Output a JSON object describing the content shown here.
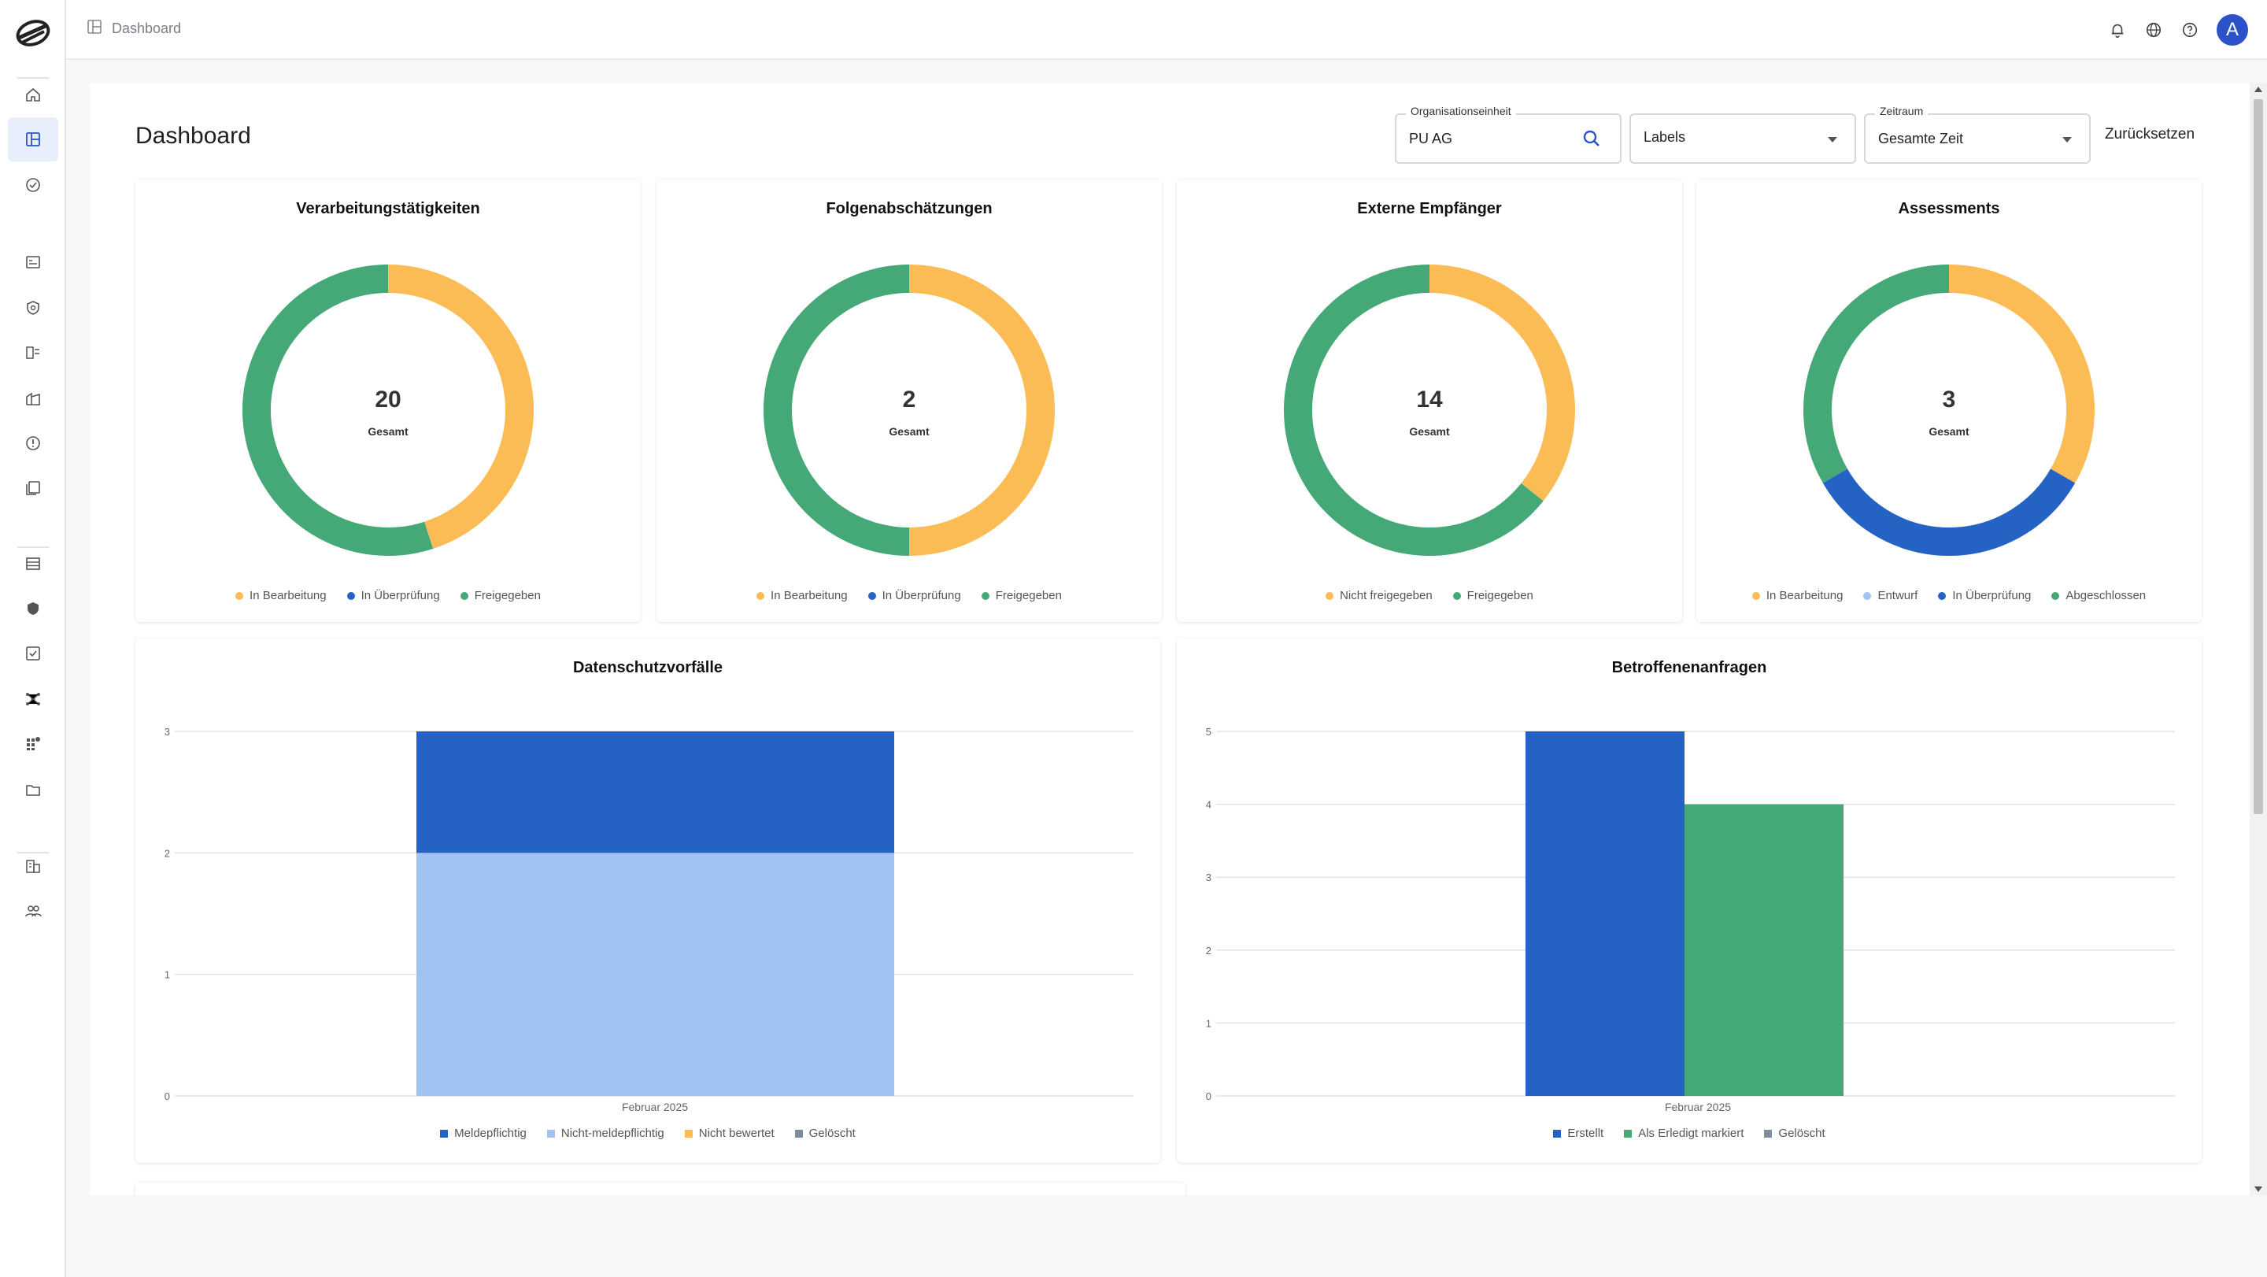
{
  "breadcrumb": {
    "label": "Dashboard"
  },
  "page": {
    "title": "Dashboard"
  },
  "filters": {
    "org_label": "Organisationseinheit",
    "org_value": "PU AG",
    "labels_value": "Labels",
    "period_label": "Zeitraum",
    "period_value": "Gesamte Zeit",
    "reset_label": "Zurücksetzen"
  },
  "user": {
    "initial": "A"
  },
  "colors": {
    "yellow": "#fbbc55",
    "green": "#45a877",
    "blue": "#2463c4",
    "light_blue": "#a0c3f3",
    "gray": "#7d8c9e"
  },
  "sidebar_icons": [
    "home-icon",
    "dashboard-icon",
    "check-circle-icon",
    "list-icon",
    "shield-icon",
    "checklist-icon",
    "building-icon",
    "alert-icon",
    "document-copy-icon",
    "table-icon",
    "security-icon",
    "task-icon",
    "network-icon",
    "apps-icon",
    "folder-icon",
    "organization-icon",
    "users-icon"
  ],
  "donuts": [
    {
      "title": "Verarbeitungstätigkeiten",
      "total": "20",
      "total_label": "Gesamt",
      "legend": [
        {
          "label": "In Bearbeitung",
          "color": "#fbbc55"
        },
        {
          "label": "In Überprüfung",
          "color": "#2463c4"
        },
        {
          "label": "Freigegeben",
          "color": "#45a877"
        }
      ]
    },
    {
      "title": "Folgenabschätzungen",
      "total": "2",
      "total_label": "Gesamt",
      "legend": [
        {
          "label": "In Bearbeitung",
          "color": "#fbbc55"
        },
        {
          "label": "In Überprüfung",
          "color": "#2463c4"
        },
        {
          "label": "Freigegeben",
          "color": "#45a877"
        }
      ]
    },
    {
      "title": "Externe Empfänger",
      "total": "14",
      "total_label": "Gesamt",
      "legend": [
        {
          "label": "Nicht freigegeben",
          "color": "#fbbc55"
        },
        {
          "label": "Freigegeben",
          "color": "#45a877"
        }
      ]
    },
    {
      "title": "Assessments",
      "total": "3",
      "total_label": "Gesamt",
      "legend": [
        {
          "label": "In Bearbeitung",
          "color": "#fbbc55"
        },
        {
          "label": "Entwurf",
          "color": "#a0c3f3"
        },
        {
          "label": "In Überprüfung",
          "color": "#2463c4"
        },
        {
          "label": "Abgeschlossen",
          "color": "#45a877"
        }
      ]
    }
  ],
  "bars": [
    {
      "title": "Datenschutzvorfälle",
      "legend": [
        {
          "label": "Meldepflichtig",
          "color": "#2463c4"
        },
        {
          "label": "Nicht-meldepflichtig",
          "color": "#a0c3f3"
        },
        {
          "label": "Nicht bewertet",
          "color": "#fbbc55"
        },
        {
          "label": "Gelöscht",
          "color": "#7d8c9e"
        }
      ]
    },
    {
      "title": "Betroffenenanfragen",
      "legend": [
        {
          "label": "Erstellt",
          "color": "#2463c4"
        },
        {
          "label": "Als Erledigt markiert",
          "color": "#45a877"
        },
        {
          "label": "Gelöscht",
          "color": "#7d8c9e"
        }
      ]
    }
  ],
  "chart_data": [
    {
      "type": "pie",
      "title": "Verarbeitungstätigkeiten",
      "categories": [
        "In Bearbeitung",
        "In Überprüfung",
        "Freigegeben"
      ],
      "values": [
        9,
        0,
        11
      ]
    },
    {
      "type": "pie",
      "title": "Folgenabschätzungen",
      "categories": [
        "In Bearbeitung",
        "In Überprüfung",
        "Freigegeben"
      ],
      "values": [
        1,
        0,
        1
      ]
    },
    {
      "type": "pie",
      "title": "Externe Empfänger",
      "categories": [
        "Nicht freigegeben",
        "Freigegeben"
      ],
      "values": [
        5,
        9
      ]
    },
    {
      "type": "pie",
      "title": "Assessments",
      "categories": [
        "In Bearbeitung",
        "Entwurf",
        "In Überprüfung",
        "Abgeschlossen"
      ],
      "values": [
        1,
        0,
        1,
        1
      ]
    },
    {
      "type": "bar",
      "stacked": true,
      "title": "Datenschutzvorfälle",
      "categories": [
        "Februar 2025"
      ],
      "series": [
        {
          "name": "Meldepflichtig",
          "values": [
            1
          ]
        },
        {
          "name": "Nicht-meldepflichtig",
          "values": [
            2
          ]
        },
        {
          "name": "Nicht bewertet",
          "values": [
            0
          ]
        },
        {
          "name": "Gelöscht",
          "values": [
            0
          ]
        }
      ],
      "yticks": [
        "0",
        "1",
        "2",
        "3"
      ],
      "ylim": [
        0,
        3
      ],
      "grid": true,
      "legend": "bottom"
    },
    {
      "type": "bar",
      "stacked": false,
      "title": "Betroffenenanfragen",
      "categories": [
        "Februar 2025"
      ],
      "series": [
        {
          "name": "Erstellt",
          "values": [
            5
          ]
        },
        {
          "name": "Als Erledigt markiert",
          "values": [
            4
          ]
        },
        {
          "name": "Gelöscht",
          "values": [
            0
          ]
        }
      ],
      "yticks": [
        "0",
        "1",
        "2",
        "3",
        "4",
        "5"
      ],
      "ylim": [
        0,
        5
      ],
      "grid": true,
      "legend": "bottom"
    }
  ]
}
